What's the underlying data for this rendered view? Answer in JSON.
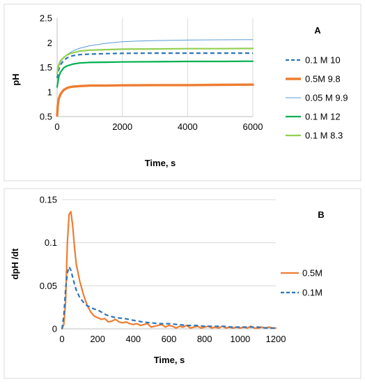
{
  "chart_data": [
    {
      "type": "line",
      "panel_label": "A",
      "title": "",
      "xlabel": "Time, s",
      "ylabel": "pH",
      "xlim": [
        0,
        6000
      ],
      "ylim": [
        0.5,
        2.5
      ],
      "x_ticks": [
        0,
        2000,
        4000,
        6000
      ],
      "y_ticks": [
        0.5,
        1,
        1.5,
        2,
        2.5
      ],
      "x_tick_labels": [
        "0",
        "2000",
        "4000",
        "6000"
      ],
      "y_tick_labels": [
        "0.5",
        "1",
        "1.5",
        "2",
        "2.5"
      ],
      "grid": "vertical",
      "legend_position": "right",
      "series": [
        {
          "name": "0.1 M 10",
          "color": "#2e75b6",
          "style": "dashed",
          "width": "medium",
          "x": [
            0,
            50,
            100,
            200,
            300,
            400,
            500,
            700,
            1000,
            1500,
            2000,
            3000,
            4000,
            5000,
            6000
          ],
          "y": [
            1.28,
            1.45,
            1.55,
            1.64,
            1.69,
            1.72,
            1.74,
            1.76,
            1.77,
            1.78,
            1.785,
            1.79,
            1.79,
            1.79,
            1.79
          ]
        },
        {
          "name": "0.5M 9.8",
          "color": "#ed7d31",
          "style": "solid",
          "width": "thick",
          "x": [
            0,
            20,
            50,
            100,
            150,
            200,
            300,
            400,
            500,
            700,
            1000,
            1500,
            2000,
            3000,
            4000,
            5000,
            6000
          ],
          "y": [
            0.52,
            0.72,
            0.86,
            0.95,
            1.0,
            1.04,
            1.08,
            1.1,
            1.11,
            1.12,
            1.13,
            1.13,
            1.135,
            1.14,
            1.14,
            1.145,
            1.15
          ]
        },
        {
          "name": "0.05 M 9.9",
          "color": "#5b9bd5",
          "style": "solid",
          "width": "thin",
          "x": [
            0,
            50,
            100,
            200,
            300,
            500,
            700,
            1000,
            1500,
            2000,
            2500,
            3000,
            4000,
            5000,
            6000
          ],
          "y": [
            1.4,
            1.52,
            1.6,
            1.7,
            1.76,
            1.84,
            1.89,
            1.94,
            1.99,
            2.02,
            2.035,
            2.045,
            2.055,
            2.06,
            2.065
          ]
        },
        {
          "name": "0.1 M 12",
          "color": "#00b050",
          "style": "solid",
          "width": "medium",
          "x": [
            0,
            50,
            100,
            200,
            300,
            400,
            500,
            700,
            1000,
            1500,
            2000,
            3000,
            4000,
            5000,
            6000
          ],
          "y": [
            1.1,
            1.3,
            1.4,
            1.49,
            1.53,
            1.55,
            1.57,
            1.59,
            1.6,
            1.605,
            1.61,
            1.615,
            1.62,
            1.62,
            1.625
          ]
        },
        {
          "name": "0.1 M 8.3",
          "color": "#92d050",
          "style": "solid",
          "width": "medium",
          "x": [
            0,
            50,
            100,
            200,
            300,
            400,
            500,
            700,
            1000,
            1500,
            2000,
            3000,
            4000,
            5000,
            6000
          ],
          "y": [
            1.38,
            1.55,
            1.63,
            1.7,
            1.75,
            1.78,
            1.8,
            1.83,
            1.85,
            1.86,
            1.87,
            1.875,
            1.88,
            1.88,
            1.885
          ]
        }
      ]
    },
    {
      "type": "line",
      "panel_label": "B",
      "title": "",
      "xlabel": "Time, s",
      "ylabel": "dpH /dt",
      "xlim": [
        0,
        1200
      ],
      "ylim": [
        0,
        0.15
      ],
      "x_ticks": [
        0,
        200,
        400,
        600,
        800,
        1000,
        1200
      ],
      "y_ticks": [
        0,
        0.05,
        0.1,
        0.15
      ],
      "x_tick_labels": [
        "0",
        "200",
        "400",
        "600",
        "800",
        "1000",
        "1200"
      ],
      "y_tick_labels": [
        "0",
        "0.05",
        "0.1",
        "0.15"
      ],
      "grid": "horizontal",
      "legend_position": "right",
      "series": [
        {
          "name": "0.5M",
          "color": "#ed7d31",
          "style": "solid",
          "width": "medium",
          "x": [
            0,
            10,
            20,
            30,
            40,
            50,
            60,
            70,
            80,
            100,
            120,
            140,
            160,
            180,
            200,
            220,
            240,
            260,
            280,
            300,
            320,
            340,
            360,
            380,
            400,
            420,
            440,
            460,
            480,
            500,
            520,
            540,
            560,
            580,
            600,
            620,
            640,
            660,
            680,
            700,
            720,
            740,
            760,
            780,
            800,
            820,
            840,
            860,
            880,
            900,
            920,
            940,
            960,
            980,
            1000,
            1020,
            1040,
            1060,
            1080,
            1100,
            1120,
            1140,
            1160,
            1180,
            1200
          ],
          "y": [
            0,
            0.005,
            0.03,
            0.1,
            0.133,
            0.136,
            0.12,
            0.095,
            0.075,
            0.055,
            0.04,
            0.028,
            0.02,
            0.015,
            0.013,
            0.011,
            0.012,
            0.008,
            0.009,
            0.011,
            0.008,
            0.007,
            0.008,
            0.006,
            0.005,
            0.006,
            0.004,
            0.005,
            0.006,
            0.002,
            0.003,
            0.004,
            0.005,
            0.002,
            0.004,
            0.003,
            0.001,
            0.003,
            0.002,
            0.004,
            0.001,
            0.002,
            0.003,
            0.001,
            0.002,
            0.003,
            0.001,
            0.002,
            0.001,
            0.003,
            0.001,
            0.002,
            0.001,
            0.002,
            0.001,
            0.002,
            0.001,
            0.003,
            0.001,
            0.001,
            0.002,
            0.001,
            0.002,
            0.001,
            0.001
          ]
        },
        {
          "name": "0.1M",
          "color": "#2e75b6",
          "style": "dashed",
          "width": "medium",
          "x": [
            0,
            10,
            20,
            30,
            40,
            50,
            60,
            70,
            80,
            100,
            120,
            140,
            160,
            180,
            200,
            250,
            300,
            350,
            400,
            450,
            500,
            550,
            600,
            650,
            700,
            750,
            800,
            850,
            900,
            950,
            1000,
            1050,
            1100,
            1150,
            1200
          ],
          "y": [
            0,
            0.015,
            0.045,
            0.065,
            0.072,
            0.068,
            0.06,
            0.052,
            0.045,
            0.036,
            0.031,
            0.027,
            0.025,
            0.023,
            0.022,
            0.016,
            0.013,
            0.012,
            0.01,
            0.008,
            0.007,
            0.006,
            0.006,
            0.005,
            0.004,
            0.004,
            0.003,
            0.003,
            0.003,
            0.002,
            0.002,
            0.002,
            0.002,
            0.001,
            0.001
          ]
        }
      ]
    }
  ]
}
